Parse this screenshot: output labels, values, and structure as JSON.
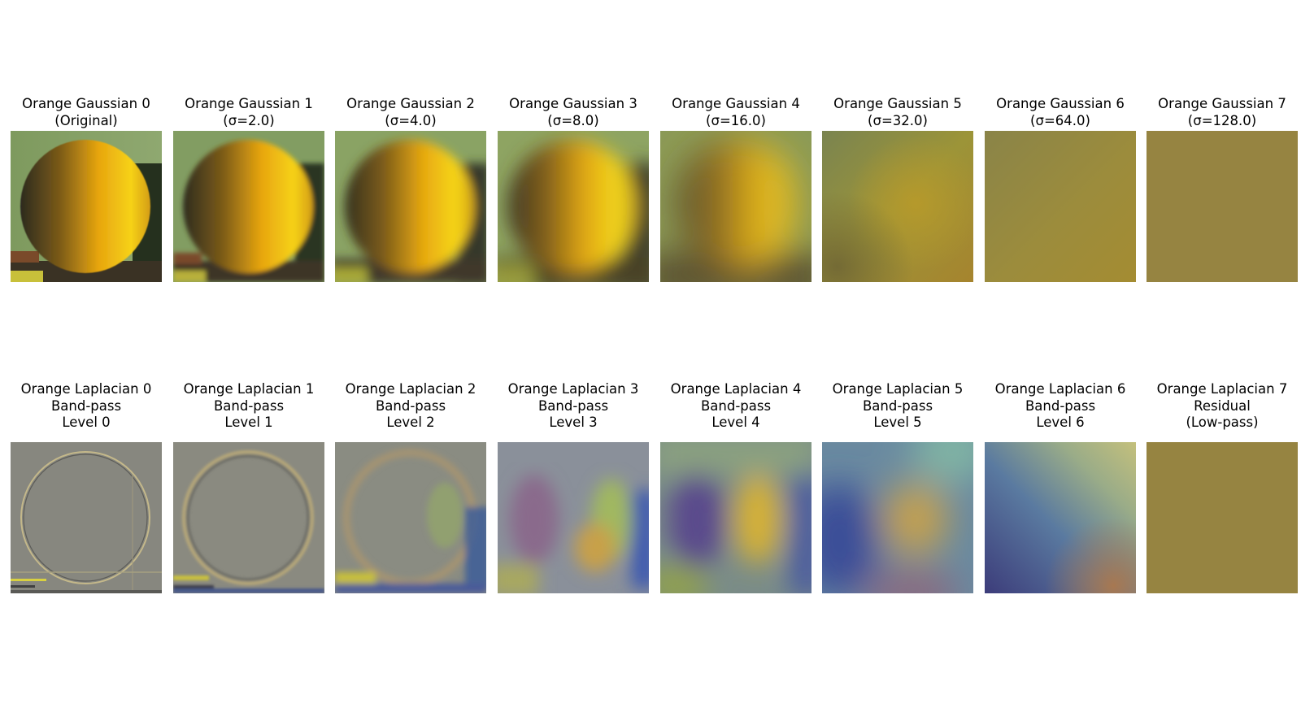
{
  "gaussian_row": [
    {
      "lines": [
        "Orange Gaussian 0",
        "(Original)"
      ]
    },
    {
      "lines": [
        "Orange Gaussian 1",
        "(σ=2.0)"
      ]
    },
    {
      "lines": [
        "Orange Gaussian 2",
        "(σ=4.0)"
      ]
    },
    {
      "lines": [
        "Orange Gaussian 3",
        "(σ=8.0)"
      ]
    },
    {
      "lines": [
        "Orange Gaussian 4",
        "(σ=16.0)"
      ]
    },
    {
      "lines": [
        "Orange Gaussian 5",
        "(σ=32.0)"
      ]
    },
    {
      "lines": [
        "Orange Gaussian 6",
        "(σ=64.0)"
      ]
    },
    {
      "lines": [
        "Orange Gaussian 7",
        "(σ=128.0)"
      ]
    }
  ],
  "laplacian_row": [
    {
      "lines": [
        "Orange Laplacian 0",
        "Band-pass",
        "Level 0"
      ]
    },
    {
      "lines": [
        "Orange Laplacian 1",
        "Band-pass",
        "Level 1"
      ]
    },
    {
      "lines": [
        "Orange Laplacian 2",
        "Band-pass",
        "Level 2"
      ]
    },
    {
      "lines": [
        "Orange Laplacian 3",
        "Band-pass",
        "Level 3"
      ]
    },
    {
      "lines": [
        "Orange Laplacian 4",
        "Band-pass",
        "Level 4"
      ]
    },
    {
      "lines": [
        "Orange Laplacian 5",
        "Band-pass",
        "Level 5"
      ]
    },
    {
      "lines": [
        "Orange Laplacian 6",
        "Band-pass",
        "Level 6"
      ]
    },
    {
      "lines": [
        "Orange Laplacian 7",
        "Residual",
        "(Low-pass)"
      ]
    }
  ]
}
